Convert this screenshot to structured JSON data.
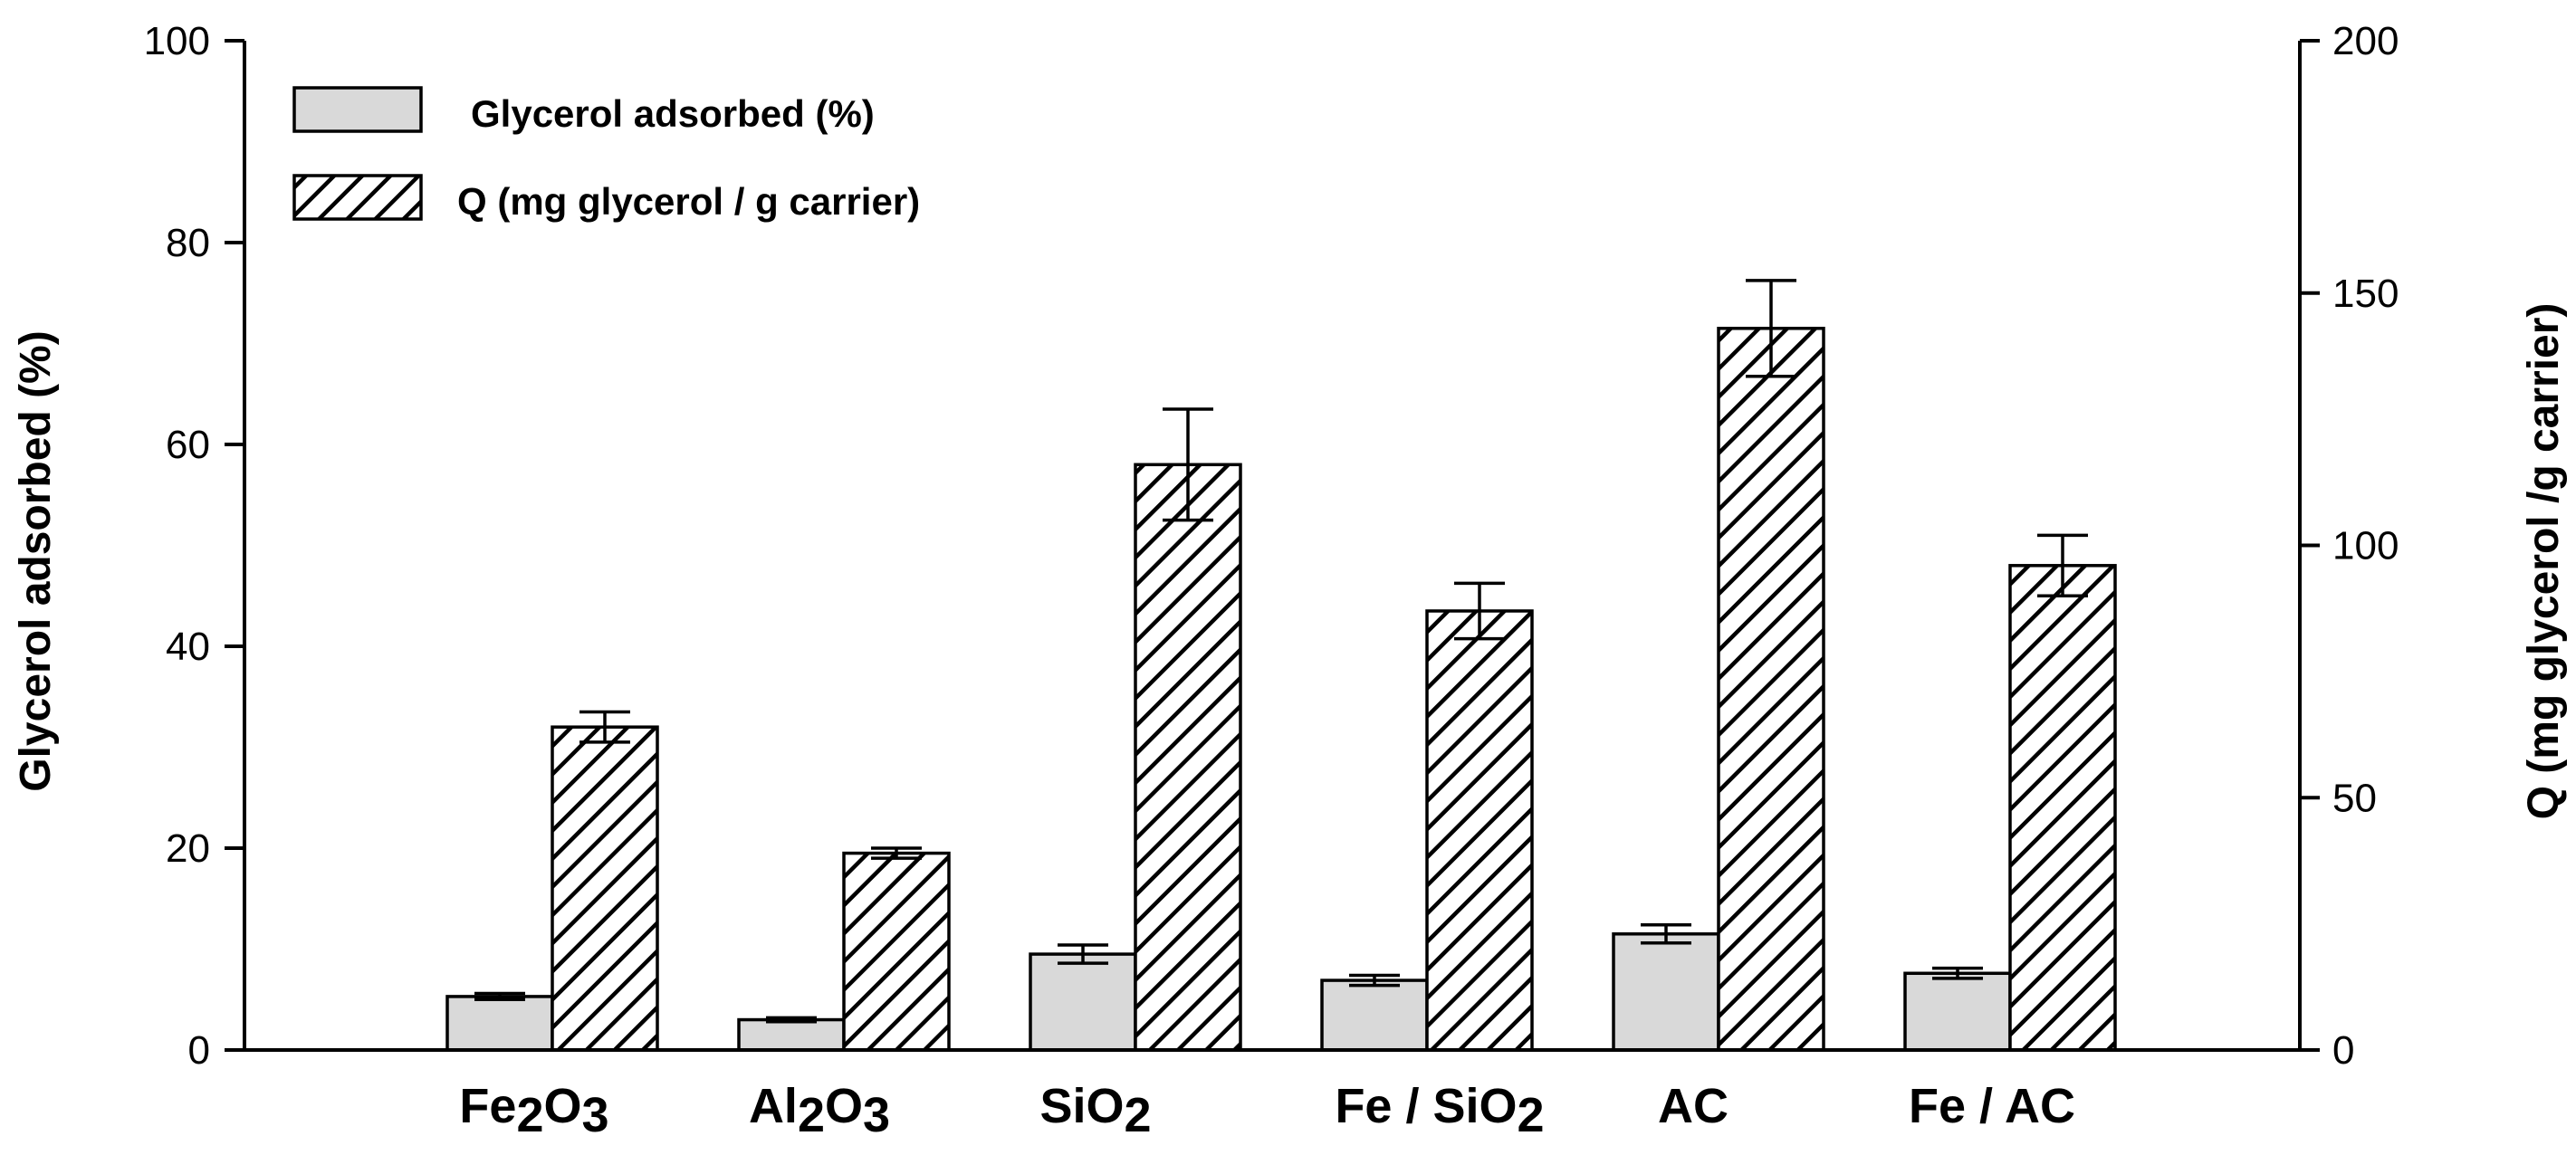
{
  "chart_data": {
    "type": "bar",
    "title": "",
    "categories": [
      "Fe2O3",
      "Al2O3",
      "SiO2",
      "Fe / SiO2",
      "AC",
      "Fe / AC"
    ],
    "category_labels": [
      {
        "parts": [
          {
            "t": "Fe"
          },
          {
            "t": "2",
            "sub": true
          },
          {
            "t": "O"
          },
          {
            "t": "3",
            "sub": true
          }
        ]
      },
      {
        "parts": [
          {
            "t": "Al"
          },
          {
            "t": "2",
            "sub": true
          },
          {
            "t": "O"
          },
          {
            "t": "3",
            "sub": true
          }
        ]
      },
      {
        "parts": [
          {
            "t": "SiO"
          },
          {
            "t": "2",
            "sub": true
          }
        ]
      },
      {
        "parts": [
          {
            "t": "Fe / SiO"
          },
          {
            "t": "2",
            "sub": true
          }
        ]
      },
      {
        "parts": [
          {
            "t": "AC"
          }
        ]
      },
      {
        "parts": [
          {
            "t": "Fe / AC"
          }
        ]
      }
    ],
    "series": [
      {
        "name": "Glycerol adsorbed (%)",
        "axis": "left",
        "fill": "solid",
        "color": "#d9d9d9",
        "values": [
          5.3,
          3.0,
          9.5,
          6.9,
          11.5,
          7.6
        ],
        "errors": [
          0.3,
          0.2,
          0.9,
          0.5,
          0.9,
          0.5
        ]
      },
      {
        "name": "Q (mg glycerol / g carrier)",
        "axis": "right",
        "fill": "hatch",
        "color": "#ffffff",
        "values": [
          64,
          39,
          116,
          87,
          143,
          96
        ],
        "errors": [
          3,
          1,
          11,
          5.5,
          9.5,
          6
        ]
      }
    ],
    "ylabel": "Glycerol adsorbed  (%)",
    "ylim": [
      0,
      100
    ],
    "yticks": [
      "0",
      "20",
      "40",
      "60",
      "80",
      "100"
    ],
    "y2label": "Q (mg glycerol /g carrier)",
    "y2lim": [
      0,
      200
    ],
    "y2ticks": [
      "0",
      "50",
      "100",
      "150",
      "200"
    ],
    "legend_position": "top-left"
  }
}
